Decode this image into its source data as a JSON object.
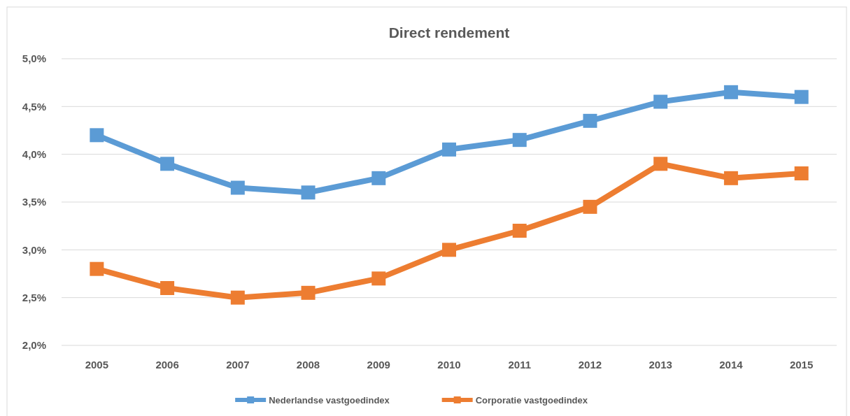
{
  "chart_data": {
    "type": "line",
    "title": "Direct rendement",
    "categories": [
      "2005",
      "2006",
      "2007",
      "2008",
      "2009",
      "2010",
      "2011",
      "2012",
      "2013",
      "2014",
      "2015"
    ],
    "series": [
      {
        "name": "Nederlandse vastgoedindex",
        "color": "#5b9bd5",
        "values": [
          4.2,
          3.9,
          3.65,
          3.6,
          3.75,
          4.05,
          4.15,
          4.35,
          4.55,
          4.65,
          4.6
        ]
      },
      {
        "name": "Corporatie vastgoedindex",
        "color": "#ed7d31",
        "values": [
          2.8,
          2.6,
          2.5,
          2.55,
          2.7,
          3.0,
          3.2,
          3.45,
          3.9,
          3.75,
          3.8
        ]
      }
    ],
    "ylim": [
      2,
      5
    ],
    "yticks": [
      {
        "value": 2,
        "label": "2,0%"
      },
      {
        "value": 2.5,
        "label": "2,5%"
      },
      {
        "value": 3,
        "label": "3,0%"
      },
      {
        "value": 3.5,
        "label": "3,5%"
      },
      {
        "value": 4,
        "label": "4,0%"
      },
      {
        "value": 4.5,
        "label": "4,5%"
      },
      {
        "value": 5,
        "label": "5,0%"
      }
    ],
    "grid": "y",
    "legend": "bottom",
    "marker": "square"
  }
}
